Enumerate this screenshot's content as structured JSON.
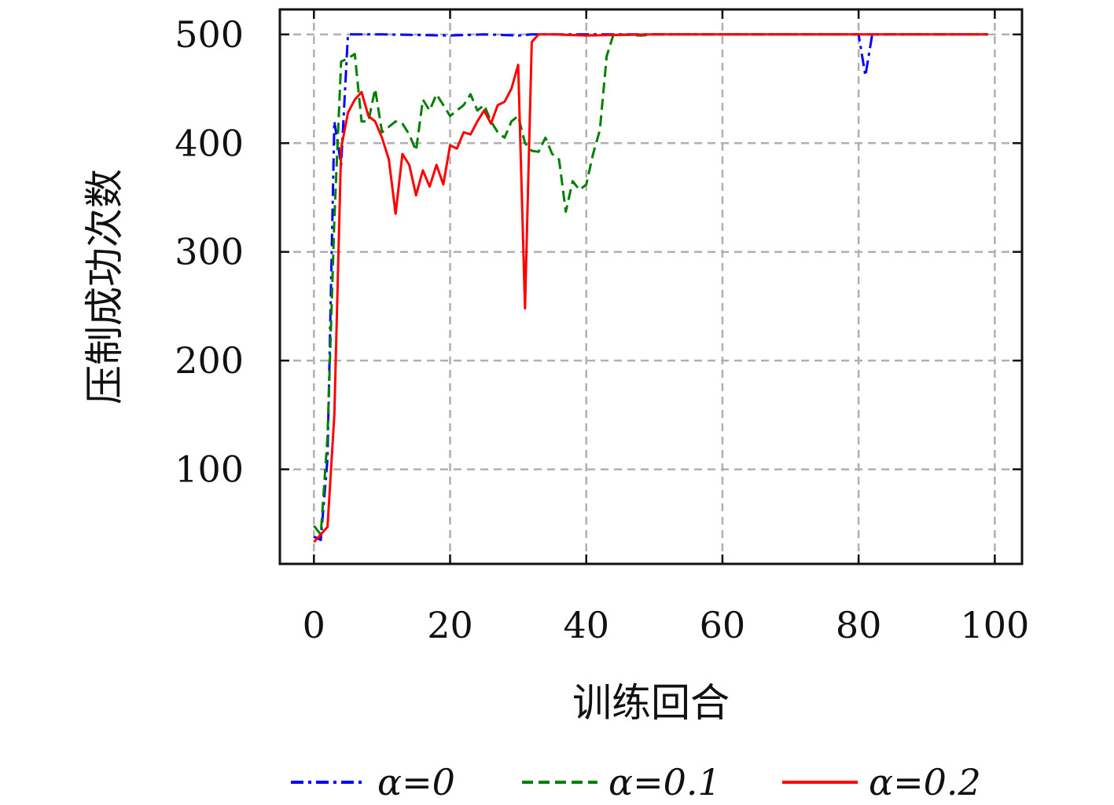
{
  "chart_data": {
    "type": "line",
    "title": "",
    "xlabel": "训练回合",
    "ylabel": "压制成功次数",
    "xlim": [
      -5,
      104
    ],
    "ylim": [
      13,
      523
    ],
    "xticks": [
      0,
      20,
      40,
      60,
      80,
      100
    ],
    "yticks": [
      100,
      200,
      300,
      400,
      500
    ],
    "xtick_labels": [
      "0",
      "20",
      "40",
      "60",
      "80",
      "100"
    ],
    "ytick_labels": [
      "100",
      "200",
      "300",
      "400",
      "500"
    ],
    "grid": true,
    "legend_position": "bottom",
    "series": [
      {
        "name": "α=0",
        "color": "#0000ff",
        "dash": "dash-dot",
        "points": [
          [
            0,
            38
          ],
          [
            1,
            35
          ],
          [
            2,
            110
          ],
          [
            3,
            420
          ],
          [
            4,
            380
          ],
          [
            5,
            500
          ],
          [
            10,
            500
          ],
          [
            20,
            499
          ],
          [
            25,
            500
          ],
          [
            30,
            499
          ],
          [
            32,
            500
          ],
          [
            40,
            500
          ],
          [
            45,
            500
          ],
          [
            50,
            500
          ],
          [
            60,
            500
          ],
          [
            70,
            500
          ],
          [
            80,
            500
          ],
          [
            81,
            462
          ],
          [
            82,
            500
          ],
          [
            90,
            500
          ],
          [
            95,
            500
          ],
          [
            99,
            500
          ]
        ]
      },
      {
        "name": "α=0.1",
        "color": "#008000",
        "dash": "dashed",
        "points": [
          [
            0,
            48
          ],
          [
            1,
            40
          ],
          [
            2,
            130
          ],
          [
            3,
            330
          ],
          [
            4,
            475
          ],
          [
            5,
            478
          ],
          [
            6,
            482
          ],
          [
            7,
            420
          ],
          [
            8,
            420
          ],
          [
            9,
            450
          ],
          [
            10,
            410
          ],
          [
            11,
            415
          ],
          [
            12,
            420
          ],
          [
            13,
            418
          ],
          [
            14,
            408
          ],
          [
            15,
            393
          ],
          [
            16,
            440
          ],
          [
            17,
            430
          ],
          [
            18,
            445
          ],
          [
            19,
            435
          ],
          [
            20,
            425
          ],
          [
            21,
            430
          ],
          [
            22,
            435
          ],
          [
            23,
            445
          ],
          [
            24,
            430
          ],
          [
            25,
            435
          ],
          [
            26,
            420
          ],
          [
            27,
            410
          ],
          [
            28,
            405
          ],
          [
            29,
            420
          ],
          [
            30,
            425
          ],
          [
            31,
            400
          ],
          [
            32,
            393
          ],
          [
            33,
            392
          ],
          [
            34,
            405
          ],
          [
            35,
            390
          ],
          [
            36,
            385
          ],
          [
            37,
            337
          ],
          [
            38,
            365
          ],
          [
            39,
            357
          ],
          [
            40,
            362
          ],
          [
            41,
            390
          ],
          [
            42,
            412
          ],
          [
            43,
            480
          ],
          [
            44,
            500
          ],
          [
            45,
            500
          ],
          [
            48,
            499
          ],
          [
            50,
            500
          ],
          [
            60,
            500
          ],
          [
            70,
            500
          ],
          [
            80,
            500
          ],
          [
            90,
            500
          ],
          [
            99,
            500
          ]
        ]
      },
      {
        "name": "α=0.2",
        "color": "#ff0000",
        "dash": "solid",
        "points": [
          [
            0,
            33
          ],
          [
            1,
            40
          ],
          [
            2,
            47
          ],
          [
            3,
            150
          ],
          [
            4,
            395
          ],
          [
            5,
            428
          ],
          [
            6,
            440
          ],
          [
            7,
            447
          ],
          [
            8,
            425
          ],
          [
            9,
            420
          ],
          [
            10,
            405
          ],
          [
            11,
            385
          ],
          [
            12,
            335
          ],
          [
            13,
            390
          ],
          [
            14,
            380
          ],
          [
            15,
            352
          ],
          [
            16,
            375
          ],
          [
            17,
            360
          ],
          [
            18,
            380
          ],
          [
            19,
            362
          ],
          [
            20,
            398
          ],
          [
            21,
            395
          ],
          [
            22,
            410
          ],
          [
            23,
            408
          ],
          [
            24,
            420
          ],
          [
            25,
            430
          ],
          [
            26,
            418
          ],
          [
            27,
            435
          ],
          [
            28,
            438
          ],
          [
            29,
            450
          ],
          [
            30,
            472
          ],
          [
            31,
            248
          ],
          [
            32,
            493
          ],
          [
            33,
            500
          ],
          [
            35,
            500
          ],
          [
            40,
            499
          ],
          [
            50,
            500
          ],
          [
            60,
            500
          ],
          [
            70,
            500
          ],
          [
            80,
            500
          ],
          [
            90,
            500
          ],
          [
            99,
            500
          ]
        ]
      }
    ]
  }
}
